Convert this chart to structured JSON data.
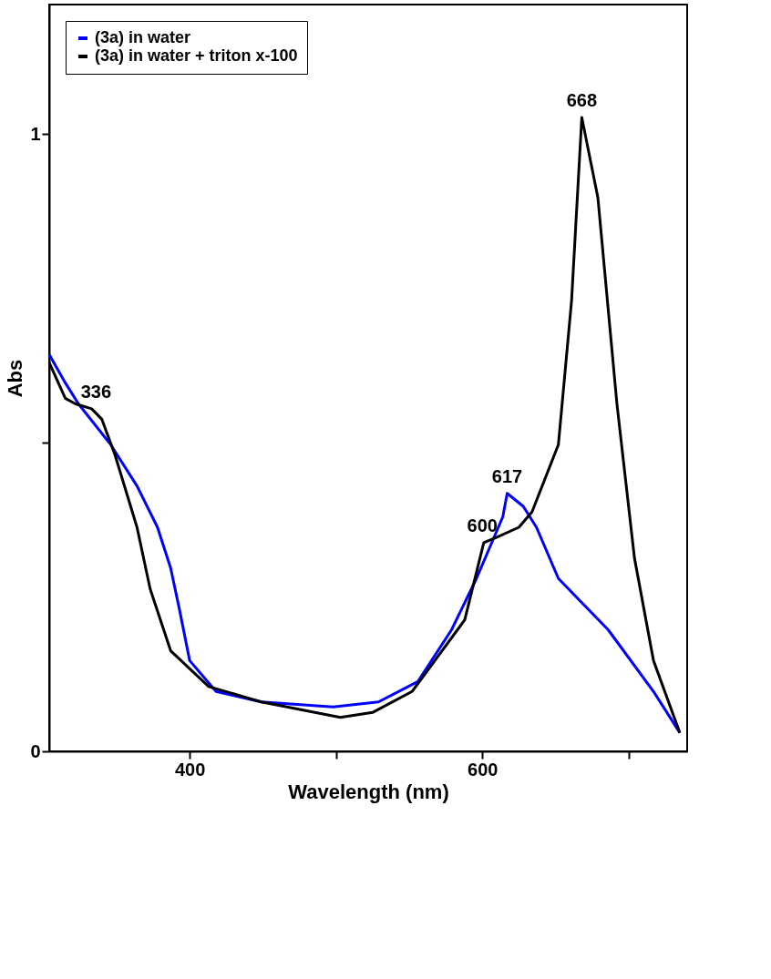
{
  "chart_data": {
    "type": "line",
    "xlabel": "Wavelength (nm)",
    "ylabel": "Abs",
    "xlim": [
      304,
      740
    ],
    "xticks": [
      400,
      {
        "value": 500,
        "label": null
      },
      600,
      {
        "value": 700,
        "label": null
      }
    ],
    "ylim": [
      0,
      1.21
    ],
    "yticks": [
      0,
      {
        "value": 0.5,
        "label": null
      },
      1
    ],
    "legend": "top left",
    "grid": false,
    "marker": "none",
    "line_style": "solid",
    "series": [
      {
        "name": "(3a) in water",
        "color": "#0000ff",
        "x": [
          304,
          315,
          324,
          346,
          364,
          378,
          387,
          393,
          400,
          418,
          449,
          498,
          529,
          556,
          579,
          596,
          614,
          617,
          628,
          637,
          652,
          686,
          717,
          735
        ],
        "values": [
          0.643,
          0.597,
          0.563,
          0.497,
          0.43,
          0.363,
          0.297,
          0.23,
          0.147,
          0.097,
          0.08,
          0.072,
          0.08,
          0.113,
          0.197,
          0.28,
          0.38,
          0.418,
          0.397,
          0.363,
          0.28,
          0.197,
          0.097,
          0.03
        ]
      },
      {
        "name": "(3a) in water + triton x-100",
        "color": "#000000",
        "x": [
          304,
          315,
          322,
          333,
          340,
          349,
          364,
          373,
          387,
          413,
          449,
          503,
          525,
          552,
          588,
          601,
          610,
          625,
          634,
          652,
          661,
          668,
          679,
          692,
          704,
          717,
          735
        ],
        "values": [
          0.63,
          0.572,
          0.563,
          0.555,
          0.538,
          0.48,
          0.363,
          0.263,
          0.163,
          0.105,
          0.08,
          0.055,
          0.063,
          0.097,
          0.213,
          0.338,
          0.347,
          0.363,
          0.388,
          0.497,
          0.73,
          1.027,
          0.897,
          0.563,
          0.313,
          0.147,
          0.03
        ]
      }
    ],
    "annotations": [
      {
        "text": "336",
        "x": 336,
        "y": 0.555
      },
      {
        "text": "600",
        "x": 600,
        "y": 0.338
      },
      {
        "text": "617",
        "x": 617,
        "y": 0.418
      },
      {
        "text": "668",
        "x": 668,
        "y": 1.027
      }
    ]
  }
}
